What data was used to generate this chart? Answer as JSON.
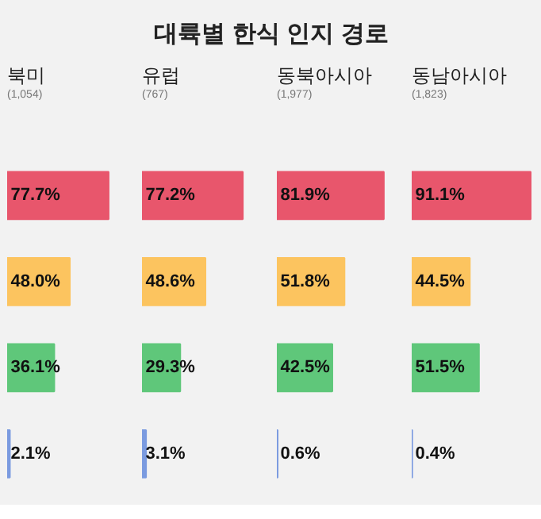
{
  "chart_data": [
    {
      "type": "other",
      "title": "대륙별 한식 인지 경로"
    },
    {
      "type": "bar",
      "title": "북미",
      "subtitle": "(1,054)",
      "orientation": "horizontal",
      "categories": [
        null,
        null,
        null,
        null
      ],
      "values": [
        77.7,
        48.0,
        36.1,
        2.1
      ],
      "value_labels": [
        "77.7%",
        "48.0%",
        "36.1%",
        "2.1%"
      ],
      "colors": [
        "#e8566c",
        "#fcc45f",
        "#5fc77a",
        "#7b9be0"
      ]
    },
    {
      "type": "bar",
      "title": "유럽",
      "subtitle": "(767)",
      "orientation": "horizontal",
      "categories": [
        null,
        null,
        null,
        null
      ],
      "values": [
        77.2,
        48.6,
        29.3,
        3.1
      ],
      "value_labels": [
        "77.2%",
        "48.6%",
        "29.3%",
        "3.1%"
      ],
      "colors": [
        "#e8566c",
        "#fcc45f",
        "#5fc77a",
        "#7b9be0"
      ]
    },
    {
      "type": "bar",
      "title": "동북아시아",
      "subtitle": "(1,977)",
      "orientation": "horizontal",
      "categories": [
        null,
        null,
        null,
        null
      ],
      "values": [
        81.9,
        51.8,
        42.5,
        0.6
      ],
      "value_labels": [
        "81.9%",
        "51.8%",
        "42.5%",
        "0.6%"
      ],
      "colors": [
        "#e8566c",
        "#fcc45f",
        "#5fc77a",
        "#7b9be0"
      ]
    },
    {
      "type": "bar",
      "title": "동남아시아",
      "subtitle": "(1,823)",
      "orientation": "horizontal",
      "categories": [
        null,
        null,
        null,
        null
      ],
      "values": [
        91.1,
        44.5,
        51.5,
        0.4
      ],
      "value_labels": [
        "91.1%",
        "44.5%",
        "51.5%",
        "0.4%"
      ],
      "colors": [
        "#e8566c",
        "#fcc45f",
        "#5fc77a",
        "#7b9be0"
      ]
    }
  ]
}
